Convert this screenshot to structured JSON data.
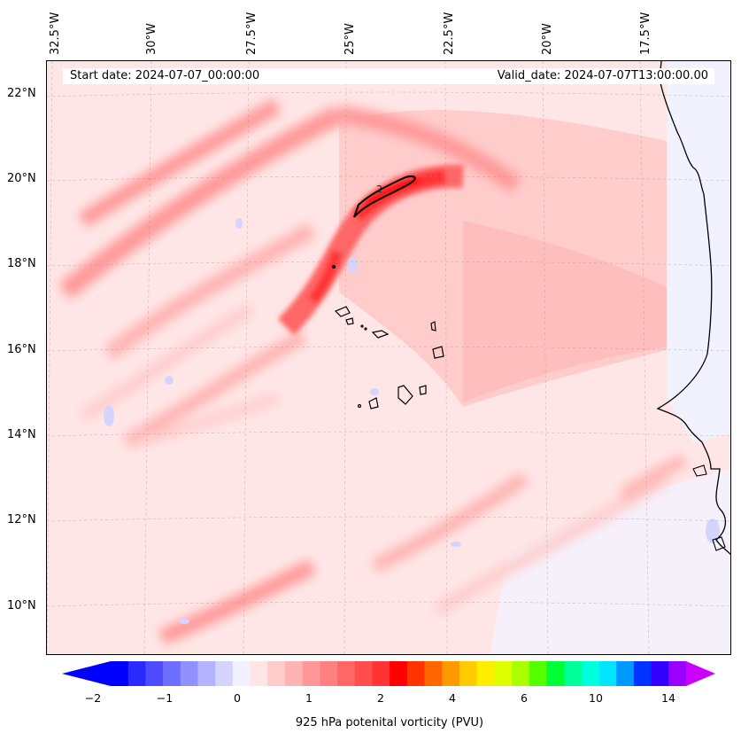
{
  "map": {
    "start_date": "Start date: 2024-07-07_00:00:00",
    "valid_date": "Valid_date: 2024-07-07T13:00:00.00",
    "longitude_labels": [
      "32.5°W",
      "30°W",
      "27.5°W",
      "25°W",
      "22.5°W",
      "20°W",
      "17.5°W"
    ],
    "latitude_labels": [
      "22°N",
      "20°N",
      "18°N",
      "16°N",
      "14°N",
      "12°N",
      "10°N"
    ],
    "contour_label": "2",
    "variable": "925 hPa potential vorticity",
    "units": "PVU"
  },
  "colorbar": {
    "label": "925 hPa potenital vorticity (PVU)",
    "tick_labels": [
      "−2",
      "−1",
      "0",
      "1",
      "2",
      "4",
      "6",
      "10",
      "14"
    ],
    "colors": [
      "#0000ff",
      "#2a2aff",
      "#4d4dff",
      "#6f6fff",
      "#9090ff",
      "#b3b3ff",
      "#d4d4ff",
      "#f2f2ff",
      "#ffe6e6",
      "#ffcccc",
      "#ffb3b3",
      "#ff9999",
      "#ff8080",
      "#ff6666",
      "#ff4d4d",
      "#ff3333",
      "#ff0000",
      "#ff3300",
      "#ff6600",
      "#ff9900",
      "#ffcc00",
      "#ffee00",
      "#ddff00",
      "#aaff00",
      "#55ff00",
      "#00ff33",
      "#00ff99",
      "#00ffdd",
      "#00e5ff",
      "#0099ff",
      "#0033ff",
      "#3300ff",
      "#9900ff"
    ],
    "extend_low_color": "#0000ff",
    "extend_high_color": "#cc00ff"
  }
}
